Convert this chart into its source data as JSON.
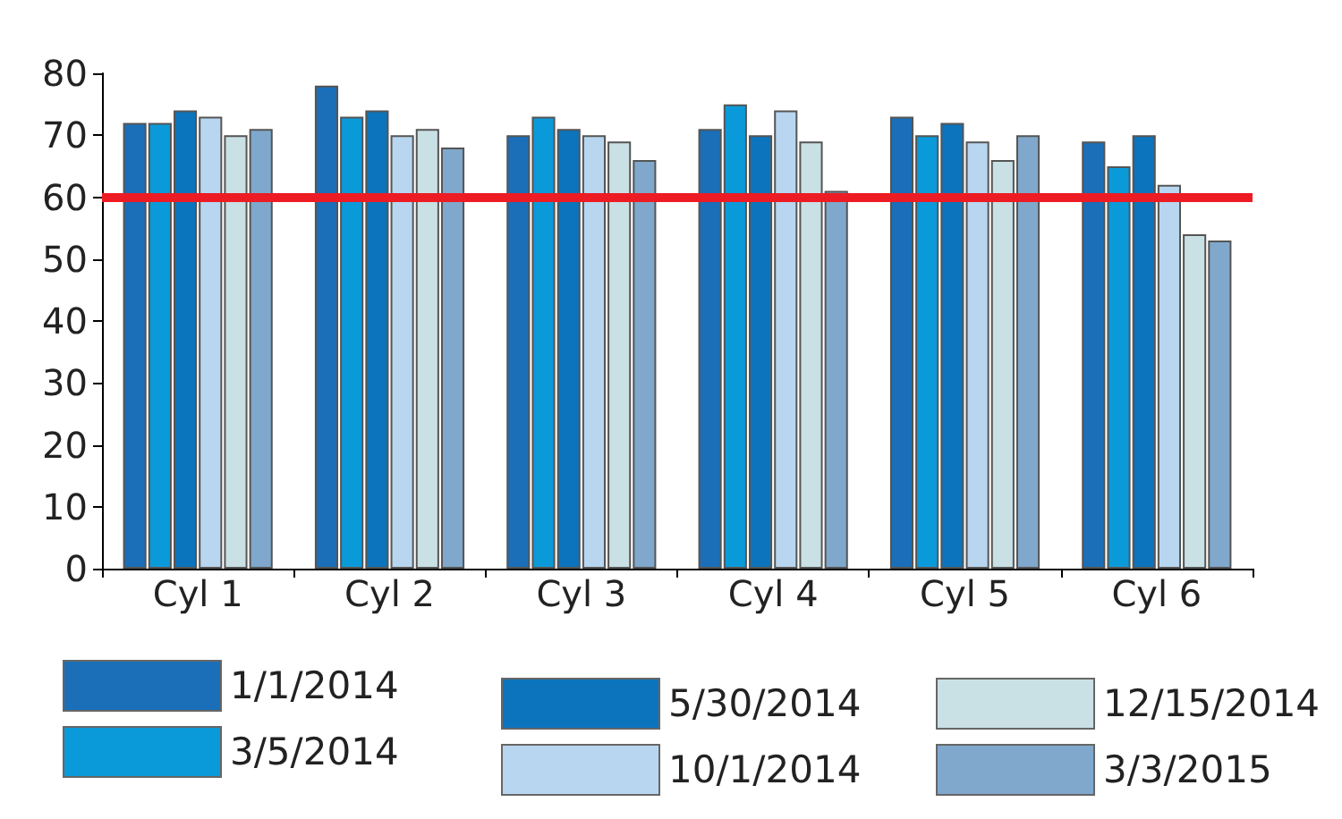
{
  "chart_data": {
    "type": "bar",
    "categories": [
      "Cyl 1",
      "Cyl 2",
      "Cyl 3",
      "Cyl 4",
      "Cyl 5",
      "Cyl 6"
    ],
    "series": [
      {
        "name": "1/1/2014",
        "color": "#1a6fb8",
        "values": [
          72,
          78,
          70,
          71,
          73,
          69
        ]
      },
      {
        "name": "3/5/2014",
        "color": "#0a9ad9",
        "values": [
          72,
          73,
          73,
          75,
          70,
          65
        ]
      },
      {
        "name": "5/30/2014",
        "color": "#0c74bc",
        "values": [
          74,
          74,
          71,
          70,
          72,
          70
        ]
      },
      {
        "name": "10/1/2014",
        "color": "#b8d6f0",
        "values": [
          73,
          70,
          70,
          74,
          69,
          62
        ]
      },
      {
        "name": "12/15/2014",
        "color": "#c9e0e5",
        "values": [
          70,
          71,
          69,
          69,
          66,
          54
        ]
      },
      {
        "name": "3/3/2015",
        "color": "#7fa8cc",
        "values": [
          71,
          68,
          66,
          61,
          70,
          53
        ]
      }
    ],
    "ylim": [
      0,
      80
    ],
    "yticks": [
      0,
      10,
      20,
      30,
      40,
      50,
      60,
      70,
      80
    ],
    "grid": false,
    "legend": "bottom",
    "ref_lines": [
      {
        "axis": "y",
        "value": 60,
        "color": "#ed1c24"
      }
    ]
  }
}
